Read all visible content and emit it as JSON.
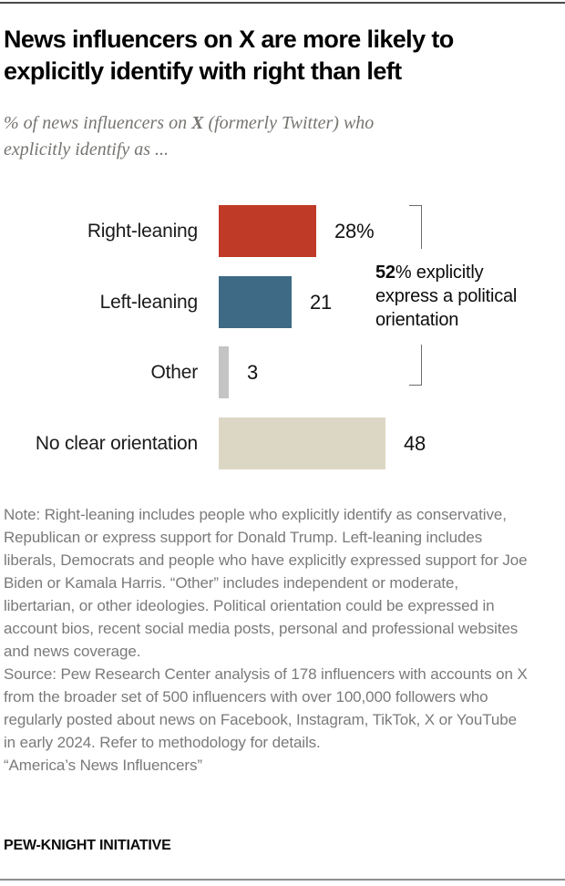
{
  "header": {
    "title_line1": "News influencers on X are more likely to",
    "title_line2": "explicitly identify with right than left",
    "subtitle_line1_pre": "% of news influencers on ",
    "subtitle_line1_x": "X",
    "subtitle_line1_post": " (formerly Twitter) who",
    "subtitle_line2": "explicitly identify as ..."
  },
  "chart_data": {
    "type": "bar",
    "orientation": "horizontal",
    "categories": [
      "Right-leaning",
      "Left-leaning",
      "Other",
      "No clear orientation"
    ],
    "values": [
      28,
      21,
      3,
      48
    ],
    "value_labels": [
      "28%",
      "21",
      "3",
      "48"
    ],
    "bar_colors": [
      "#bf3a27",
      "#3e6a85",
      "#c4c4c4",
      "#dcd7c5"
    ],
    "xlim": [
      0,
      100
    ],
    "grid": false,
    "legend": "none",
    "annotation": {
      "bold_value": "52",
      "rest": "% explicitly express a political orientation",
      "bracket_groups": [
        "Right-leaning",
        "Left-leaning",
        "Other"
      ]
    }
  },
  "notes": {
    "note": "Note: Right-leaning includes people who explicitly identify as conservative, Republican or express support for Donald Trump. Left-leaning includes liberals, Democrats and people who have explicitly expressed support for Joe Biden or Kamala Harris. “Other” includes independent or moderate, libertarian, or other ideologies. Political orientation could be expressed in account bios, recent social media posts, personal and professional websites and news coverage.",
    "source": "Source: Pew Research Center analysis of 178 influencers with accounts on X from the broader set of 500 influencers with over 100,000 followers who regularly posted about news on Facebook, Instagram, TikTok, X or YouTube in early 2024. Refer to methodology for details.",
    "report": "“America’s News Influencers”"
  },
  "footer": {
    "brand": "PEW-KNIGHT INITIATIVE"
  },
  "colors": {
    "accent_red": "#bf3a27",
    "accent_blue": "#3e6a85",
    "neutral_gray": "#c4c4c4",
    "beige": "#dcd7c5",
    "rule_top": "#4a4a4a",
    "rule_bottom": "#8e8e8e",
    "text_gray": "#7a7a7a"
  }
}
